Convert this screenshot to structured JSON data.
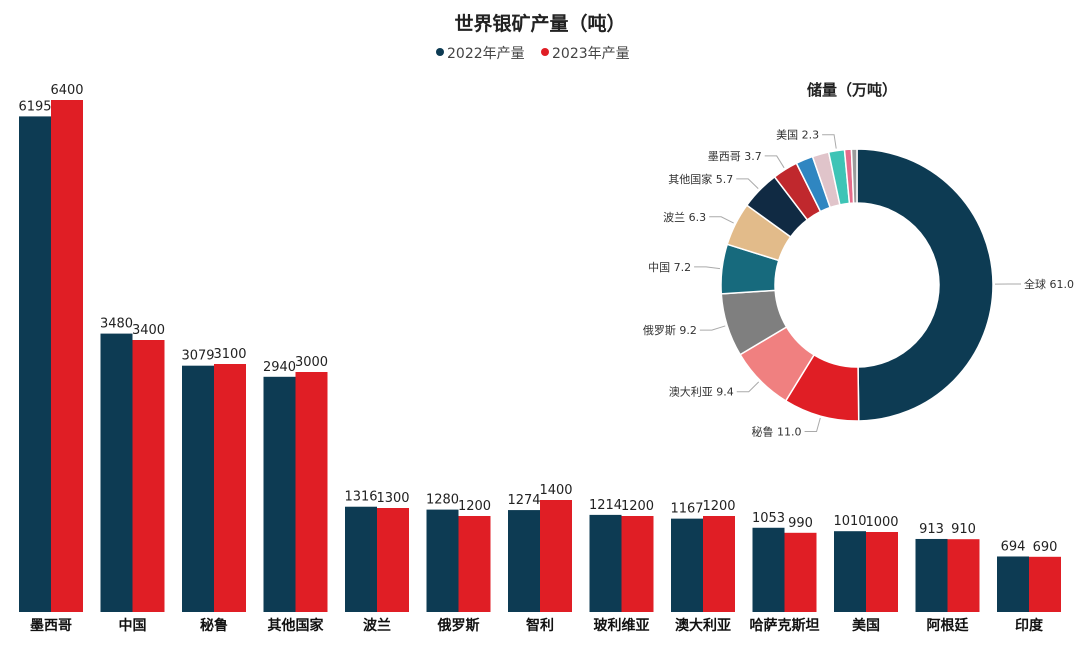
{
  "colors": {
    "series2022": "#0d3b53",
    "series2023": "#e01e25"
  },
  "chart_data": [
    {
      "type": "bar",
      "title": "世界银矿产量（吨）",
      "series": [
        {
          "name": "2022年产量",
          "values": [
            6195,
            3480,
            3079,
            2940,
            1316,
            1280,
            1274,
            1214,
            1167,
            1053,
            1010,
            913,
            694
          ]
        },
        {
          "name": "2023年产量",
          "values": [
            6400,
            3400,
            3100,
            3000,
            1300,
            1200,
            1400,
            1200,
            1200,
            990,
            1000,
            910,
            690
          ]
        }
      ],
      "categories": [
        "墨西哥",
        "中国",
        "秘鲁",
        "其他国家",
        "波兰",
        "俄罗斯",
        "智利",
        "玻利维亚",
        "澳大利亚",
        "哈萨克斯坦",
        "美国",
        "阿根廷",
        "印度"
      ],
      "value_labels_2022": [
        "6195",
        "3480",
        "3079",
        "2940",
        "1316",
        "1280",
        "1274",
        "1214",
        "1167",
        "1053",
        "1010",
        "913",
        "694"
      ],
      "value_labels_2023": [
        "6400",
        "3400",
        "3100",
        "3000",
        "1300",
        "1200",
        "1400",
        "1200",
        "1200",
        "990",
        "1000",
        "910",
        "690"
      ],
      "ylim": [
        0,
        6400
      ],
      "grid": false,
      "legend_position": "top-center"
    },
    {
      "type": "pie",
      "subtype": "donut",
      "title": "储量（万吨）",
      "slices": [
        {
          "label": "全球",
          "value": 61.0,
          "display": "全球 61.0",
          "color": "#0d3b53"
        },
        {
          "label": "秘鲁",
          "value": 11.0,
          "display": "秘鲁 11.0",
          "color": "#e01e25"
        },
        {
          "label": "澳大利亚",
          "value": 9.4,
          "display": "澳大利亚 9.4",
          "color": "#f08080"
        },
        {
          "label": "俄罗斯",
          "value": 9.2,
          "display": "俄罗斯 9.2",
          "color": "#7f7f7f"
        },
        {
          "label": "中国",
          "value": 7.2,
          "display": "中国 7.2",
          "color": "#176a7d"
        },
        {
          "label": "波兰",
          "value": 6.3,
          "display": "波兰 6.3",
          "color": "#e2bb8a"
        },
        {
          "label": "其他国家",
          "value": 5.7,
          "display": "其他国家 5.7",
          "color": "#102a43"
        },
        {
          "label": "墨西哥",
          "value": 3.7,
          "display": "墨西哥 3.7",
          "color": "#c0282d"
        },
        {
          "label": "",
          "value": 2.5,
          "display": "",
          "color": "#2f86c1"
        },
        {
          "label": "",
          "value": 2.4,
          "display": "",
          "color": "#e0c4ca"
        },
        {
          "label": "美国",
          "value": 2.3,
          "display": "美国 2.3",
          "color": "#3ec4b6"
        },
        {
          "label": "",
          "value": 1.0,
          "display": "",
          "color": "#e56b8a"
        },
        {
          "label": "",
          "value": 0.8,
          "display": "",
          "color": "#9b9b9b"
        }
      ]
    }
  ]
}
